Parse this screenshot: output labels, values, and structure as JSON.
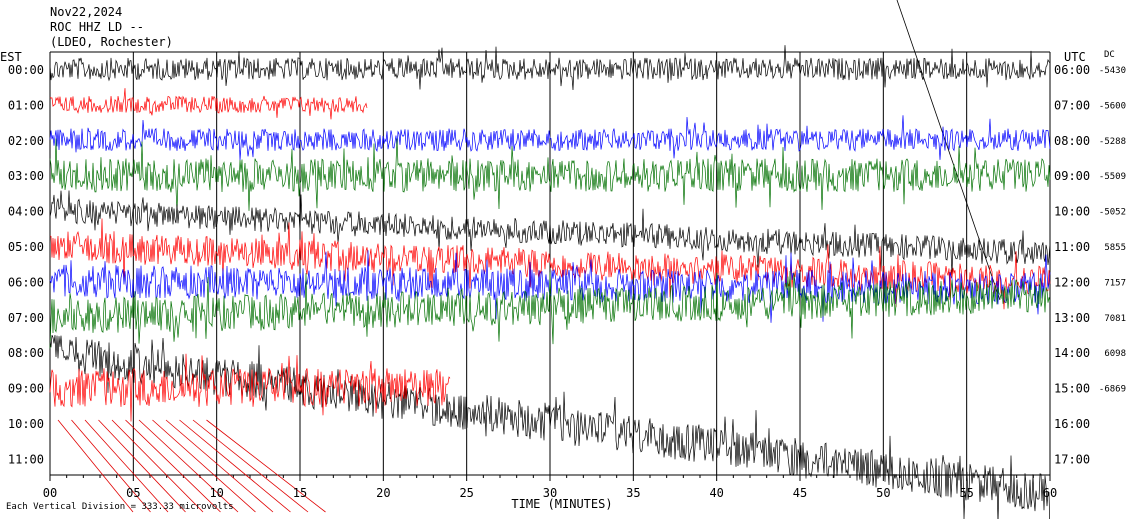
{
  "header": {
    "date": "Nov22,2024",
    "station": "ROC HHZ LD --",
    "location": "(LDEO, Rochester)"
  },
  "left_timezone": "EST",
  "right_timezone": "UTC",
  "dc_label": "DC",
  "footer": {
    "scale_note": "Each Vertical Division =  333.33 microvolts"
  },
  "colors": {
    "trace_cycle": [
      "#000000",
      "#ff0000",
      "#0000ff",
      "#007000"
    ],
    "grid": "#000000",
    "event_lines": "#e00000"
  },
  "chart_data": {
    "type": "line",
    "title": "",
    "xlabel": "TIME (MINUTES)",
    "ylabel": "",
    "xlim": [
      0,
      60
    ],
    "x_ticks": [
      "00",
      "05",
      "10",
      "15",
      "20",
      "25",
      "30",
      "35",
      "40",
      "45",
      "50",
      "55",
      "60"
    ],
    "rows": [
      {
        "est": "00:00",
        "utc": "06:00",
        "dc": "-5430",
        "color": "#000000",
        "amp": 0.8,
        "end": 60,
        "drift": 0
      },
      {
        "est": "01:00",
        "utc": "07:00",
        "dc": "-5600",
        "color": "#ff0000",
        "amp": 0.6,
        "end": 19,
        "drift": 0
      },
      {
        "est": "02:00",
        "utc": "08:00",
        "dc": "-5288",
        "color": "#0000ff",
        "amp": 0.8,
        "end": 60,
        "drift": 0
      },
      {
        "est": "03:00",
        "utc": "09:00",
        "dc": "-5509",
        "color": "#007000",
        "amp": 1.2,
        "end": 60,
        "drift": 0
      },
      {
        "est": "04:00",
        "utc": "10:00",
        "dc": "-5052",
        "color": "#000000",
        "amp": 0.9,
        "end": 60,
        "drift": 1.2
      },
      {
        "est": "05:00",
        "utc": "11:00",
        "dc": "5855",
        "color": "#ff0000",
        "amp": 1.1,
        "end": 60,
        "drift": 1.0
      },
      {
        "est": "06:00",
        "utc": "12:00",
        "dc": "7157",
        "color": "#0000ff",
        "amp": 1.2,
        "end": 60,
        "drift": 0.2
      },
      {
        "est": "07:00",
        "utc": "13:00",
        "dc": "7081",
        "color": "#007000",
        "amp": 1.3,
        "end": 60,
        "drift": -0.6
      },
      {
        "est": "08:00",
        "utc": "14:00",
        "dc": "6098",
        "color": "#000000",
        "amp": 1.4,
        "end": 60,
        "drift": 4.0
      },
      {
        "est": "09:00",
        "utc": "15:00",
        "dc": "-6869",
        "color": "#ff0000",
        "amp": 1.4,
        "end": 24,
        "drift": 0
      },
      {
        "est": "10:00",
        "utc": "16:00",
        "dc": "",
        "color": "#000000",
        "amp": 0,
        "end": 0,
        "drift": 0
      },
      {
        "est": "11:00",
        "utc": "17:00",
        "dc": "",
        "color": "#000000",
        "amp": 0,
        "end": 0,
        "drift": 0
      }
    ]
  }
}
